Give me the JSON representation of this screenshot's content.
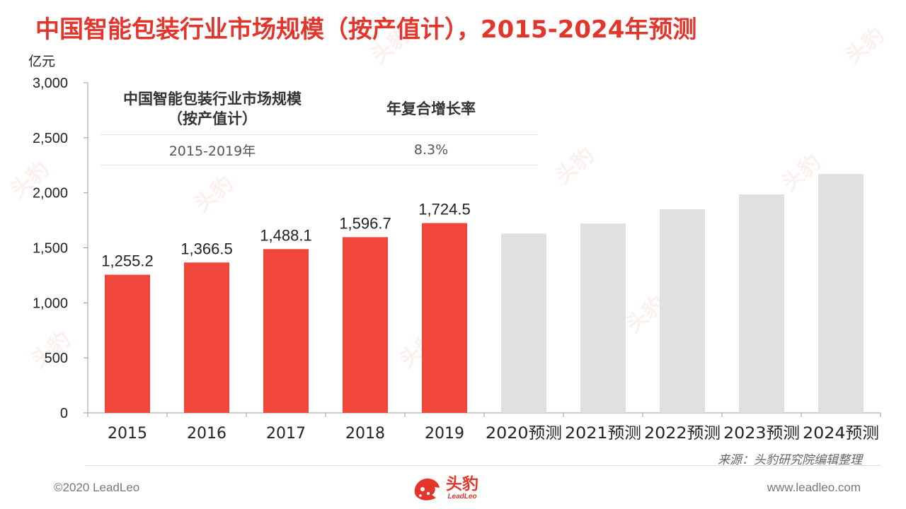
{
  "title": "中国智能包装行业市场规模（按产值计），2015-2024年预测",
  "unit_label": "亿元",
  "inset_table": {
    "header_metric": "中国智能包装行业市场规模\n（按产值计）",
    "header_rate": "年复合增长率",
    "period": "2015-2019年",
    "rate": "8.3%"
  },
  "chart_data": {
    "type": "bar",
    "ylabel": "亿元",
    "ylim": [
      0,
      3000
    ],
    "yticks": [
      0,
      500,
      1000,
      1500,
      2000,
      2500,
      3000
    ],
    "ytick_labels": [
      "0",
      "500",
      "1,000",
      "1,500",
      "2,000",
      "2,500",
      "3,000"
    ],
    "grid": false,
    "categories": [
      "2015",
      "2016",
      "2017",
      "2018",
      "2019",
      "2020预测",
      "2021预测",
      "2022预测",
      "2023预测",
      "2024预测"
    ],
    "values": [
      1255.2,
      1366.5,
      1488.1,
      1596.7,
      1724.5,
      1630,
      1720,
      1850,
      1985,
      2170
    ],
    "data_labels": [
      "1,255.2",
      "1,366.5",
      "1,488.1",
      "1,596.7",
      "1,724.5",
      "",
      "",
      "",
      "",
      ""
    ],
    "colors": {
      "actual": "#f0463b",
      "forecast": "#e0e0e0"
    },
    "forecast_start_index": 5
  },
  "source": "来源：头豹研究院编辑整理",
  "footer": {
    "copyright": "©2020 LeadLeo",
    "website": "www.leadleo.com",
    "logo_cn": "头豹",
    "logo_en": "LeadLeo"
  },
  "watermark_text": "头豹"
}
